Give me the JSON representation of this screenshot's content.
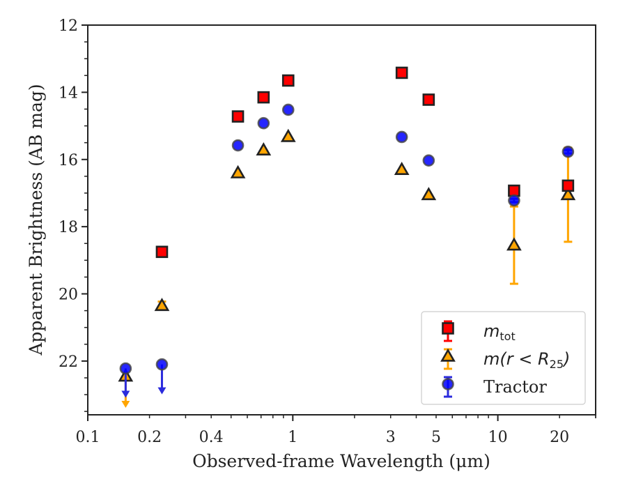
{
  "chart_data": {
    "type": "scatter",
    "xlabel": "Observed-frame Wavelength (μm)",
    "ylabel": "Apparent Brightness (AB mag)",
    "x_scale": "log",
    "xlim": [
      0.1,
      30
    ],
    "ylim": [
      23.6,
      12
    ],
    "y_inverted": true,
    "x_ticks": [
      0.1,
      0.2,
      0.4,
      1,
      3,
      5,
      10,
      20
    ],
    "x_tick_labels": [
      "0.1",
      "0.2",
      "0.4",
      "1",
      "3",
      "5",
      "10",
      "20"
    ],
    "y_ticks": [
      12,
      14,
      16,
      18,
      20,
      22
    ],
    "y_tick_labels": [
      "12",
      "14",
      "16",
      "18",
      "20",
      "22"
    ],
    "legend_position": "lower right",
    "series": [
      {
        "name": "m_tot",
        "label_main": "m",
        "label_sub": "tot",
        "marker": "square",
        "color": "#ff0000",
        "edge_color": "#222222",
        "points": [
          {
            "x": 0.23,
            "y": 18.75,
            "err": 0
          },
          {
            "x": 0.54,
            "y": 14.72,
            "err": 0
          },
          {
            "x": 0.72,
            "y": 14.15,
            "err": 0
          },
          {
            "x": 0.95,
            "y": 13.65,
            "err": 0
          },
          {
            "x": 3.4,
            "y": 13.42,
            "err": 0
          },
          {
            "x": 4.6,
            "y": 14.22,
            "err": 0
          },
          {
            "x": 12.0,
            "y": 16.93,
            "err": 0.05
          },
          {
            "x": 22.0,
            "y": 16.78,
            "err": 0.05
          }
        ]
      },
      {
        "name": "m(r<R25)",
        "label_main": "m(r < R",
        "label_sub": "25",
        "label_end": ")",
        "marker": "triangle",
        "color": "#ffa500",
        "edge_color": "#222222",
        "points": [
          {
            "x": 0.153,
            "y": 22.45,
            "upper_limit": true,
            "limit_to": 23.35
          },
          {
            "x": 0.23,
            "y": 20.35,
            "err": 0.12
          },
          {
            "x": 0.54,
            "y": 16.4,
            "err": 0
          },
          {
            "x": 0.72,
            "y": 15.72,
            "err": 0
          },
          {
            "x": 0.95,
            "y": 15.32,
            "err": 0
          },
          {
            "x": 3.4,
            "y": 16.3,
            "err": 0
          },
          {
            "x": 4.6,
            "y": 17.05,
            "err": 0
          },
          {
            "x": 12.0,
            "y": 18.55,
            "err": 1.15
          },
          {
            "x": 22.0,
            "y": 17.05,
            "err": 1.4
          }
        ]
      },
      {
        "name": "Tractor",
        "label_main": "Tractor",
        "marker": "circle",
        "color": "#0000ff",
        "edge_color": "#444444",
        "points": [
          {
            "x": 0.153,
            "y": 22.22,
            "upper_limit": true,
            "limit_to": 23.05
          },
          {
            "x": 0.23,
            "y": 22.1,
            "upper_limit": true,
            "limit_to": 22.95
          },
          {
            "x": 0.54,
            "y": 15.58,
            "err": 0
          },
          {
            "x": 0.72,
            "y": 14.92,
            "err": 0
          },
          {
            "x": 0.95,
            "y": 14.52,
            "err": 0
          },
          {
            "x": 3.4,
            "y": 15.33,
            "err": 0
          },
          {
            "x": 4.6,
            "y": 16.03,
            "err": 0
          },
          {
            "x": 12.0,
            "y": 17.22,
            "err": 0.05
          },
          {
            "x": 22.0,
            "y": 15.77,
            "err": 0.05
          }
        ]
      }
    ]
  }
}
